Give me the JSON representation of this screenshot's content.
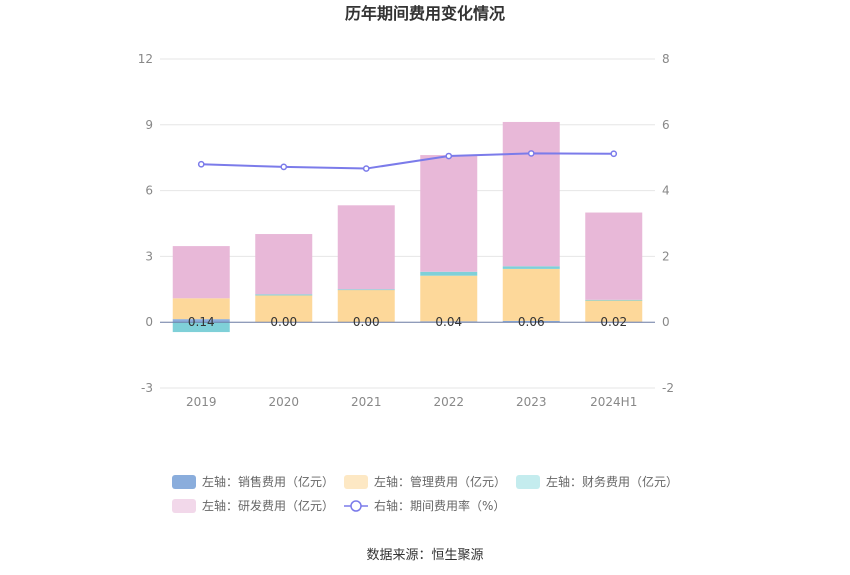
{
  "chart_data": {
    "type": "bar",
    "title": "历年期间费用变化情况",
    "categories": [
      "2019",
      "2020",
      "2021",
      "2022",
      "2023",
      "2024H1"
    ],
    "left_axis": {
      "min": -3,
      "max": 12,
      "ticks": [
        12,
        9,
        6,
        3,
        0,
        -3
      ]
    },
    "right_axis": {
      "min": -2,
      "max": 8,
      "ticks": [
        8,
        6,
        4,
        2,
        0,
        -2
      ]
    },
    "series": [
      {
        "name": "左轴：销售费用（亿元）",
        "type": "bar",
        "axis": "left",
        "color": "#8aaddc",
        "values": [
          0.14,
          0.0,
          0.0,
          0.04,
          0.06,
          0.02
        ]
      },
      {
        "name": "左轴：管理费用（亿元）",
        "type": "bar",
        "axis": "left",
        "color": "#fdd89a",
        "values": [
          0.95,
          1.22,
          1.48,
          2.08,
          2.37,
          0.98
        ]
      },
      {
        "name": "左轴：财务费用（亿元）",
        "type": "bar",
        "axis": "left",
        "color": "#7fd0d8",
        "values": [
          -0.45,
          0.05,
          0.02,
          0.18,
          0.12,
          0.02
        ]
      },
      {
        "name": "左轴：研发费用（亿元）",
        "type": "bar",
        "axis": "left",
        "color": "#e8b8d8",
        "values": [
          2.38,
          2.75,
          3.83,
          5.32,
          6.58,
          3.98
        ]
      },
      {
        "name": "右轴：期间费用率（%）",
        "type": "line",
        "axis": "right",
        "color": "#7b7bea",
        "values": [
          4.8,
          4.72,
          4.67,
          5.05,
          5.13,
          5.12
        ]
      }
    ],
    "bar_labels": [
      "0.14",
      "0.00",
      "0.00",
      "0.04",
      "0.06",
      "0.02"
    ],
    "legend_position": "bottom",
    "grid": true
  },
  "source": "数据来源：恒生聚源"
}
